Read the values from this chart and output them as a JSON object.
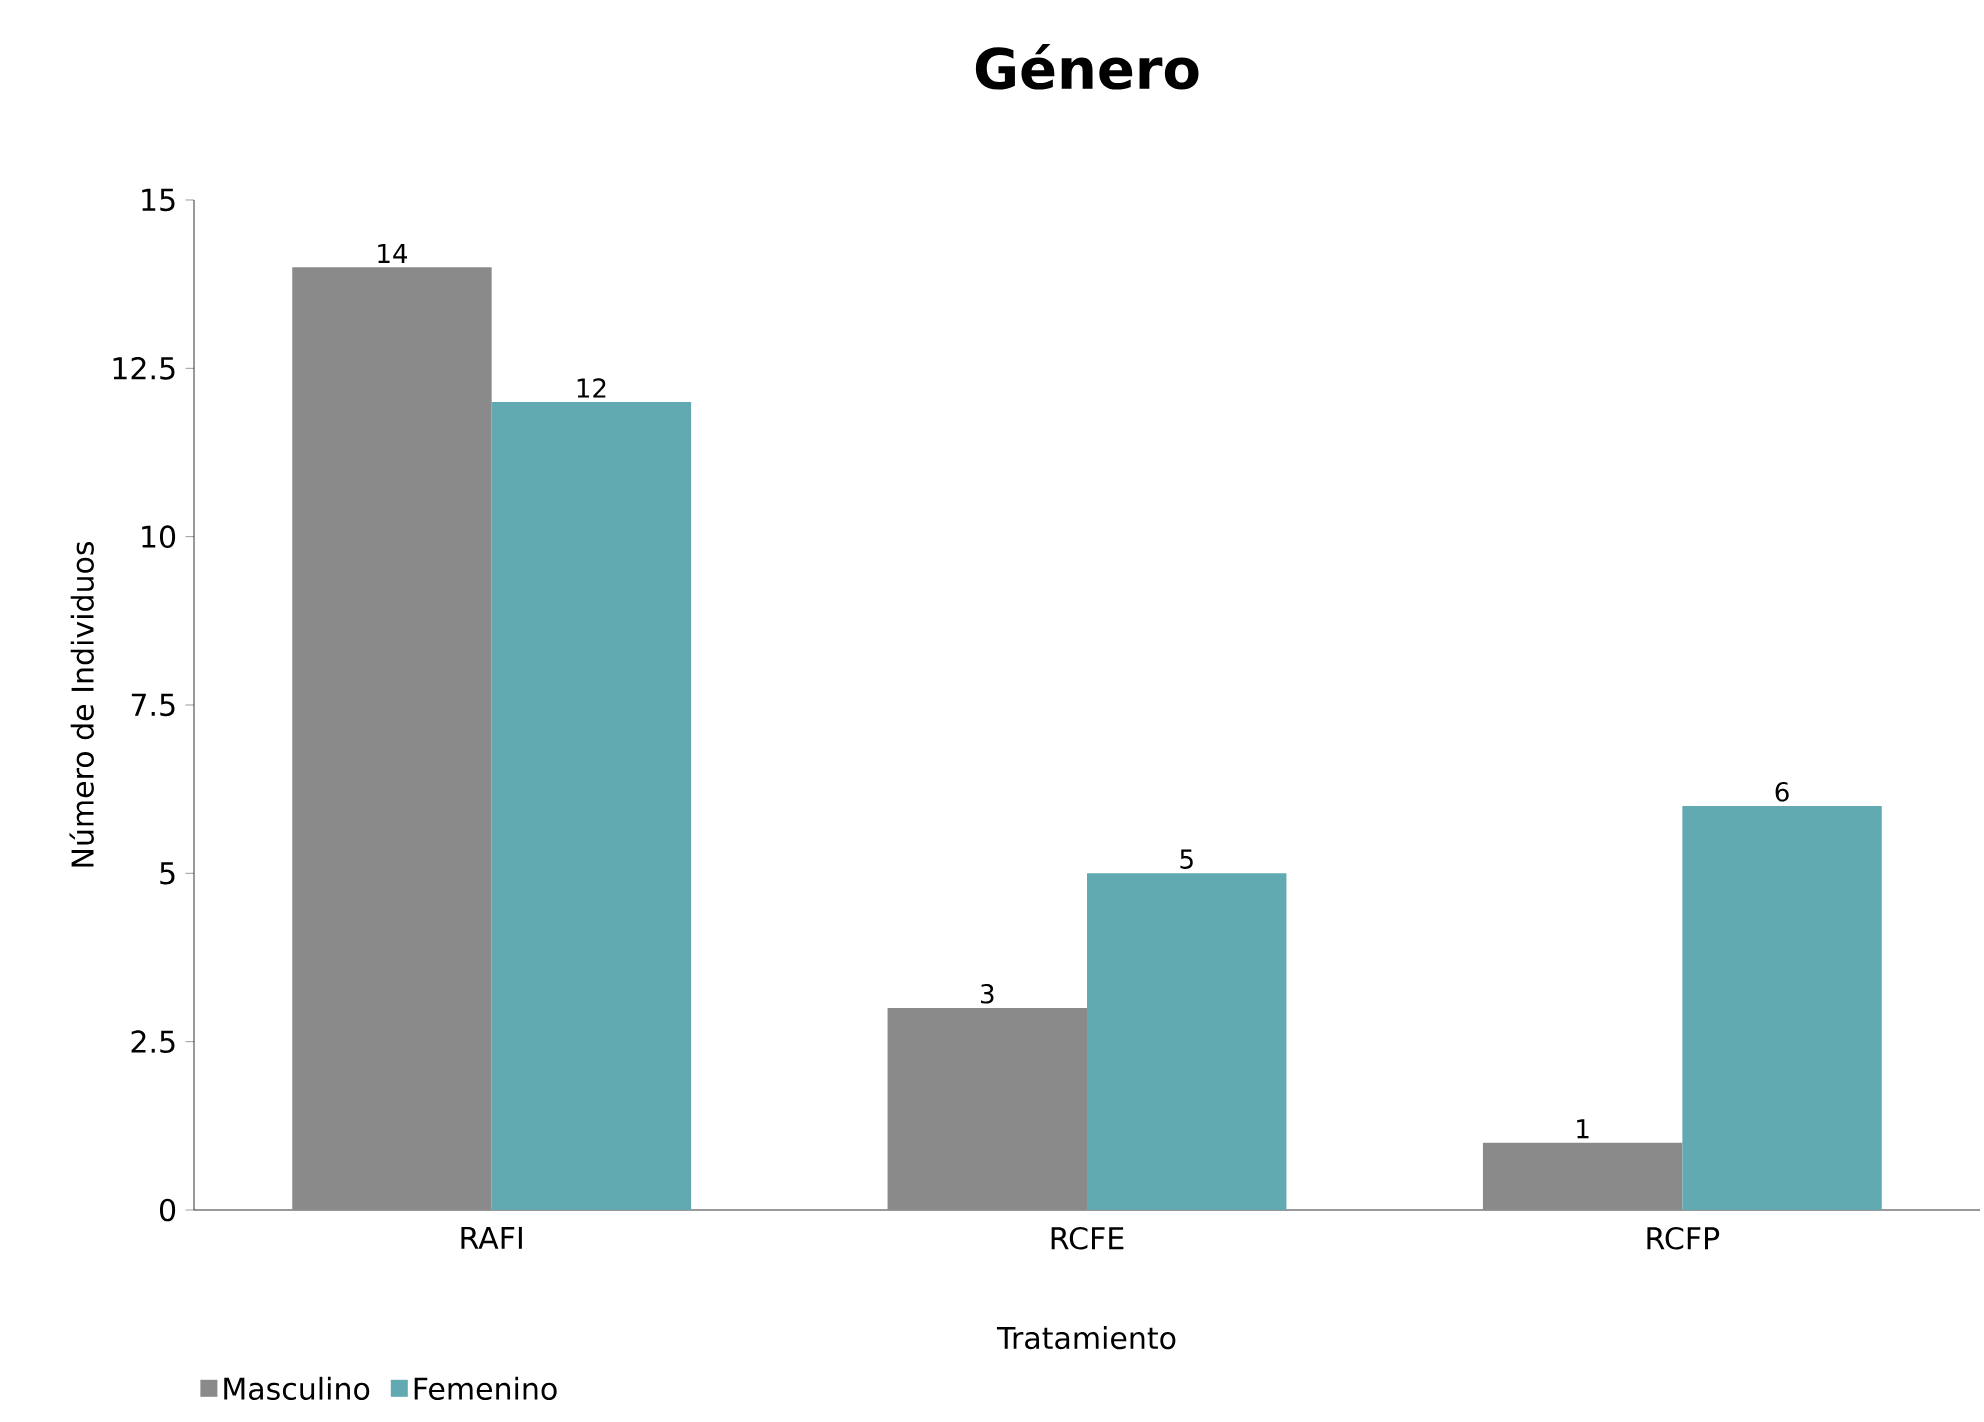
{
  "chart_data": {
    "type": "bar",
    "title": "Género",
    "xlabel": "Tratamiento",
    "ylabel": "Número de Individuos",
    "categories": [
      "RAFI",
      "RCFE",
      "RCFP"
    ],
    "series": [
      {
        "name": "Masculino",
        "color": "#8a8a8a",
        "values": [
          14,
          3,
          1
        ]
      },
      {
        "name": "Femenino",
        "color": "#62aab2",
        "values": [
          12,
          5,
          6
        ]
      }
    ],
    "ylim": [
      0,
      15
    ],
    "yticks": [
      0,
      2.5,
      5,
      7.5,
      10,
      12.5,
      15
    ],
    "data_labels": true,
    "legend": "bottom left",
    "grid": false
  }
}
